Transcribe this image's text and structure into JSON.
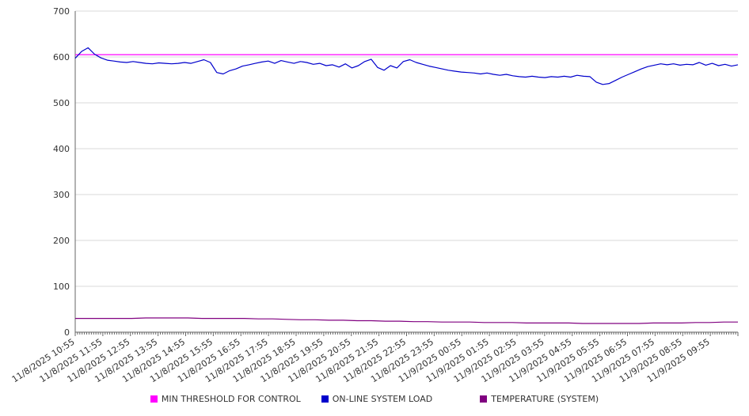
{
  "chart_data": {
    "type": "line",
    "title": "",
    "xlabel": "",
    "ylabel": "",
    "ylim": [
      0,
      700
    ],
    "yticks": [
      0,
      100,
      200,
      300,
      400,
      500,
      600,
      700
    ],
    "grid": true,
    "legend_position": "bottom",
    "x_minor_per_label": 12,
    "x_labels": [
      "11/8/2025 10:55",
      "11/8/2025 11:55",
      "11/8/2025 12:55",
      "11/8/2025 13:55",
      "11/8/2025 14:55",
      "11/8/2025 15:55",
      "11/8/2025 16:55",
      "11/8/2025 17:55",
      "11/8/2025 18:55",
      "11/8/2025 19:55",
      "11/8/2025 20:55",
      "11/8/2025 21:55",
      "11/8/2025 22:55",
      "11/8/2025 23:55",
      "11/9/2025 00:55",
      "11/9/2025 01:55",
      "11/9/2025 02:55",
      "11/9/2025 03:55",
      "11/9/2025 04:55",
      "11/9/2025 05:55",
      "11/9/2025 06:55",
      "11/9/2025 07:55",
      "11/9/2025 08:55",
      "11/9/2025 09:55"
    ],
    "style": {
      "background": "#ffffff",
      "grid_color": "#d9d9d9",
      "axis_color": "#666666",
      "text_color": "#333333"
    },
    "series": [
      {
        "name": "MIN THRESHOLD FOR CONTROL",
        "color": "#ff00ff",
        "values": [
          605,
          605
        ]
      },
      {
        "name": "ON-LINE SYSTEM LOAD",
        "color": "#0000cc",
        "values": [
          597,
          612,
          620,
          606,
          598,
          593,
          591,
          589,
          588,
          590,
          588,
          586,
          585,
          587,
          586,
          585,
          586,
          588,
          586,
          590,
          594,
          588,
          566,
          563,
          570,
          574,
          580,
          583,
          586,
          589,
          591,
          586,
          592,
          589,
          586,
          590,
          588,
          584,
          586,
          581,
          583,
          578,
          585,
          576,
          581,
          590,
          595,
          577,
          571,
          581,
          576,
          590,
          594,
          588,
          584,
          580,
          577,
          574,
          571,
          569,
          567,
          566,
          565,
          563,
          565,
          562,
          560,
          562,
          559,
          557,
          556,
          558,
          556,
          555,
          557,
          556,
          558,
          556,
          560,
          558,
          557,
          545,
          540,
          542,
          549,
          556,
          562,
          568,
          574,
          579,
          582,
          585,
          583,
          585,
          582,
          584,
          583,
          588,
          582,
          586,
          581,
          584,
          580,
          583
        ]
      },
      {
        "name": "TEMPERATURE (SYSTEM)",
        "color": "#800080",
        "values": [
          30,
          30,
          30,
          30,
          30,
          31,
          31,
          31,
          31,
          30,
          30,
          30,
          30,
          29,
          29,
          28,
          27,
          27,
          26,
          26,
          25,
          25,
          24,
          24,
          23,
          23,
          22,
          22,
          22,
          21,
          21,
          21,
          20,
          20,
          20,
          20,
          19,
          19,
          19,
          19,
          19,
          20,
          20,
          20,
          21,
          21,
          22,
          22
        ]
      }
    ]
  }
}
